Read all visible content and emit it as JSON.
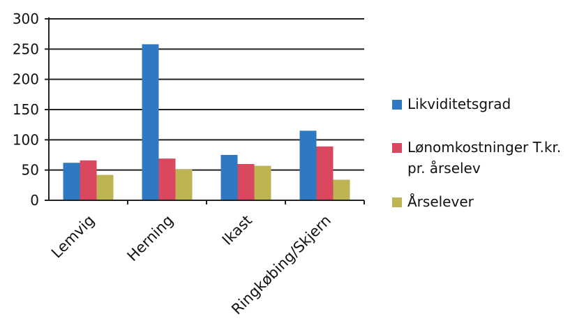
{
  "chart_data": {
    "type": "bar",
    "title": "",
    "xlabel": "",
    "ylabel": "",
    "categories": [
      "Lemvig",
      "Herning",
      "Ikast",
      "Ringkøbing/Skjern"
    ],
    "series": [
      {
        "name": "Likviditetsgrad",
        "color": "#2f79c2",
        "values": [
          62,
          258,
          75,
          115
        ]
      },
      {
        "name": "Lønomkostninger T.kr. pr. årselev",
        "color": "#d9485f",
        "values": [
          66,
          69,
          60,
          89
        ]
      },
      {
        "name": "Årselever",
        "color": "#bdb453",
        "values": [
          42,
          51,
          57,
          34
        ]
      }
    ],
    "ylim": [
      0,
      300
    ],
    "yticks": [
      "0",
      "50",
      "100",
      "150",
      "200",
      "250",
      "300"
    ],
    "grid": true,
    "legend_position": "right"
  }
}
